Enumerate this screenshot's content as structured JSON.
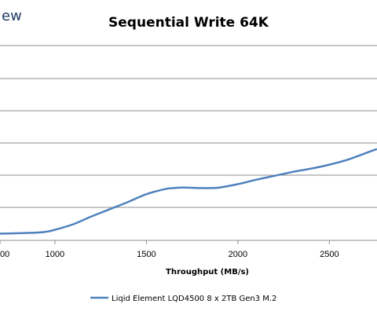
{
  "brand": {
    "text": "ew",
    "color": "#1f3b63"
  },
  "chart_data": {
    "type": "line",
    "title": "Sequential Write 64K",
    "xlabel": "Throughput (MB/s)",
    "ylabel": "",
    "xlim": [
      700,
      2760
    ],
    "ylim": [
      0,
      350
    ],
    "grid": true,
    "legend_position": "bottom",
    "x_ticks": [
      1000,
      1500,
      2000,
      2500
    ],
    "x_tick_labels": [
      "1000",
      "1500",
      "2000",
      "2500"
    ],
    "first_tick_partial_label": "00",
    "y_gridlines": [
      50,
      100,
      150,
      200,
      250,
      300
    ],
    "series": [
      {
        "name": "Liqid Element LQD4500 8 x 2TB Gen3 M.2",
        "color": "#4f81bd",
        "x": [
          700,
          900,
          960,
          1000,
          1100,
          1200,
          1300,
          1400,
          1500,
          1600,
          1650,
          1700,
          1800,
          1850,
          1900,
          2000,
          2100,
          2200,
          2300,
          2400,
          2500,
          2600,
          2700,
          2760
        ],
        "y": [
          12,
          14,
          16,
          19,
          29,
          43,
          56,
          69,
          83,
          92,
          94,
          95,
          94,
          94,
          95,
          101,
          109,
          116,
          123,
          129,
          136,
          145,
          157,
          164
        ]
      }
    ]
  }
}
